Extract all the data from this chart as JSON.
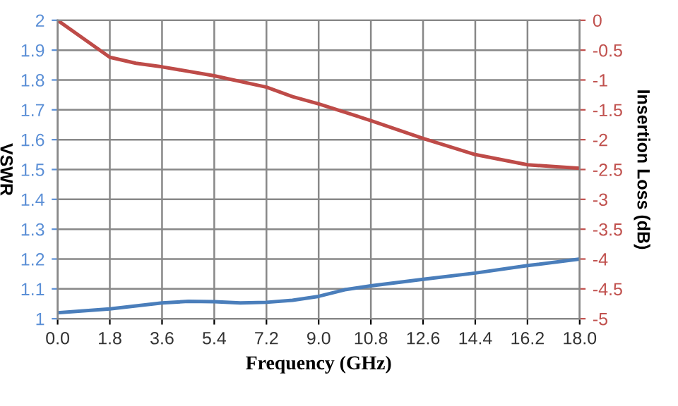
{
  "chart_data": {
    "type": "line",
    "xlabel": "Frequency (GHz)",
    "ylabel": "VSWR",
    "y2label": "Insertion Loss (dB)",
    "xlim": [
      0,
      18
    ],
    "xticks": [
      {
        "value": 0,
        "label": "0.0"
      },
      1.8,
      3.6,
      5.4,
      7.2,
      {
        "value": 9,
        "label": "9.0"
      },
      10.8,
      12.6,
      14.4,
      16.2,
      {
        "value": 18,
        "label": "18.0"
      }
    ],
    "ylim": [
      1,
      2
    ],
    "yticks": [
      1,
      1.1,
      1.2,
      1.3,
      1.4,
      1.5,
      1.6,
      1.7,
      1.8,
      1.9,
      2
    ],
    "y2lim": [
      -5,
      0
    ],
    "y2ticks": [
      -5,
      -4.5,
      -4,
      -3.5,
      -3,
      -2.5,
      -2,
      -1.5,
      -1,
      -0.5,
      0
    ],
    "grid": true,
    "legend": false,
    "series": [
      {
        "color": "#4a7ebb",
        "x": [
          0,
          1.8,
          3.6,
          4.5,
          5.4,
          6.3,
          7.2,
          8.1,
          9.0,
          9.9,
          10.8,
          12.6,
          14.4,
          16.2,
          18
        ],
        "values": [
          1.02,
          1.033,
          1.053,
          1.058,
          1.057,
          1.053,
          1.055,
          1.062,
          1.075,
          1.097,
          1.11,
          1.132,
          1.153,
          1.178,
          1.2
        ]
      },
      {
        "color": "#be4b48",
        "axis": "y2",
        "x": [
          0,
          1.8,
          2.7,
          3.6,
          5.4,
          7.2,
          8.1,
          9.0,
          10.8,
          12.6,
          14.4,
          16.2,
          18
        ],
        "values": [
          0,
          -0.62,
          -0.72,
          -0.78,
          -0.93,
          -1.12,
          -1.28,
          -1.4,
          -1.68,
          -1.98,
          -2.25,
          -2.42,
          -2.48
        ]
      }
    ]
  }
}
